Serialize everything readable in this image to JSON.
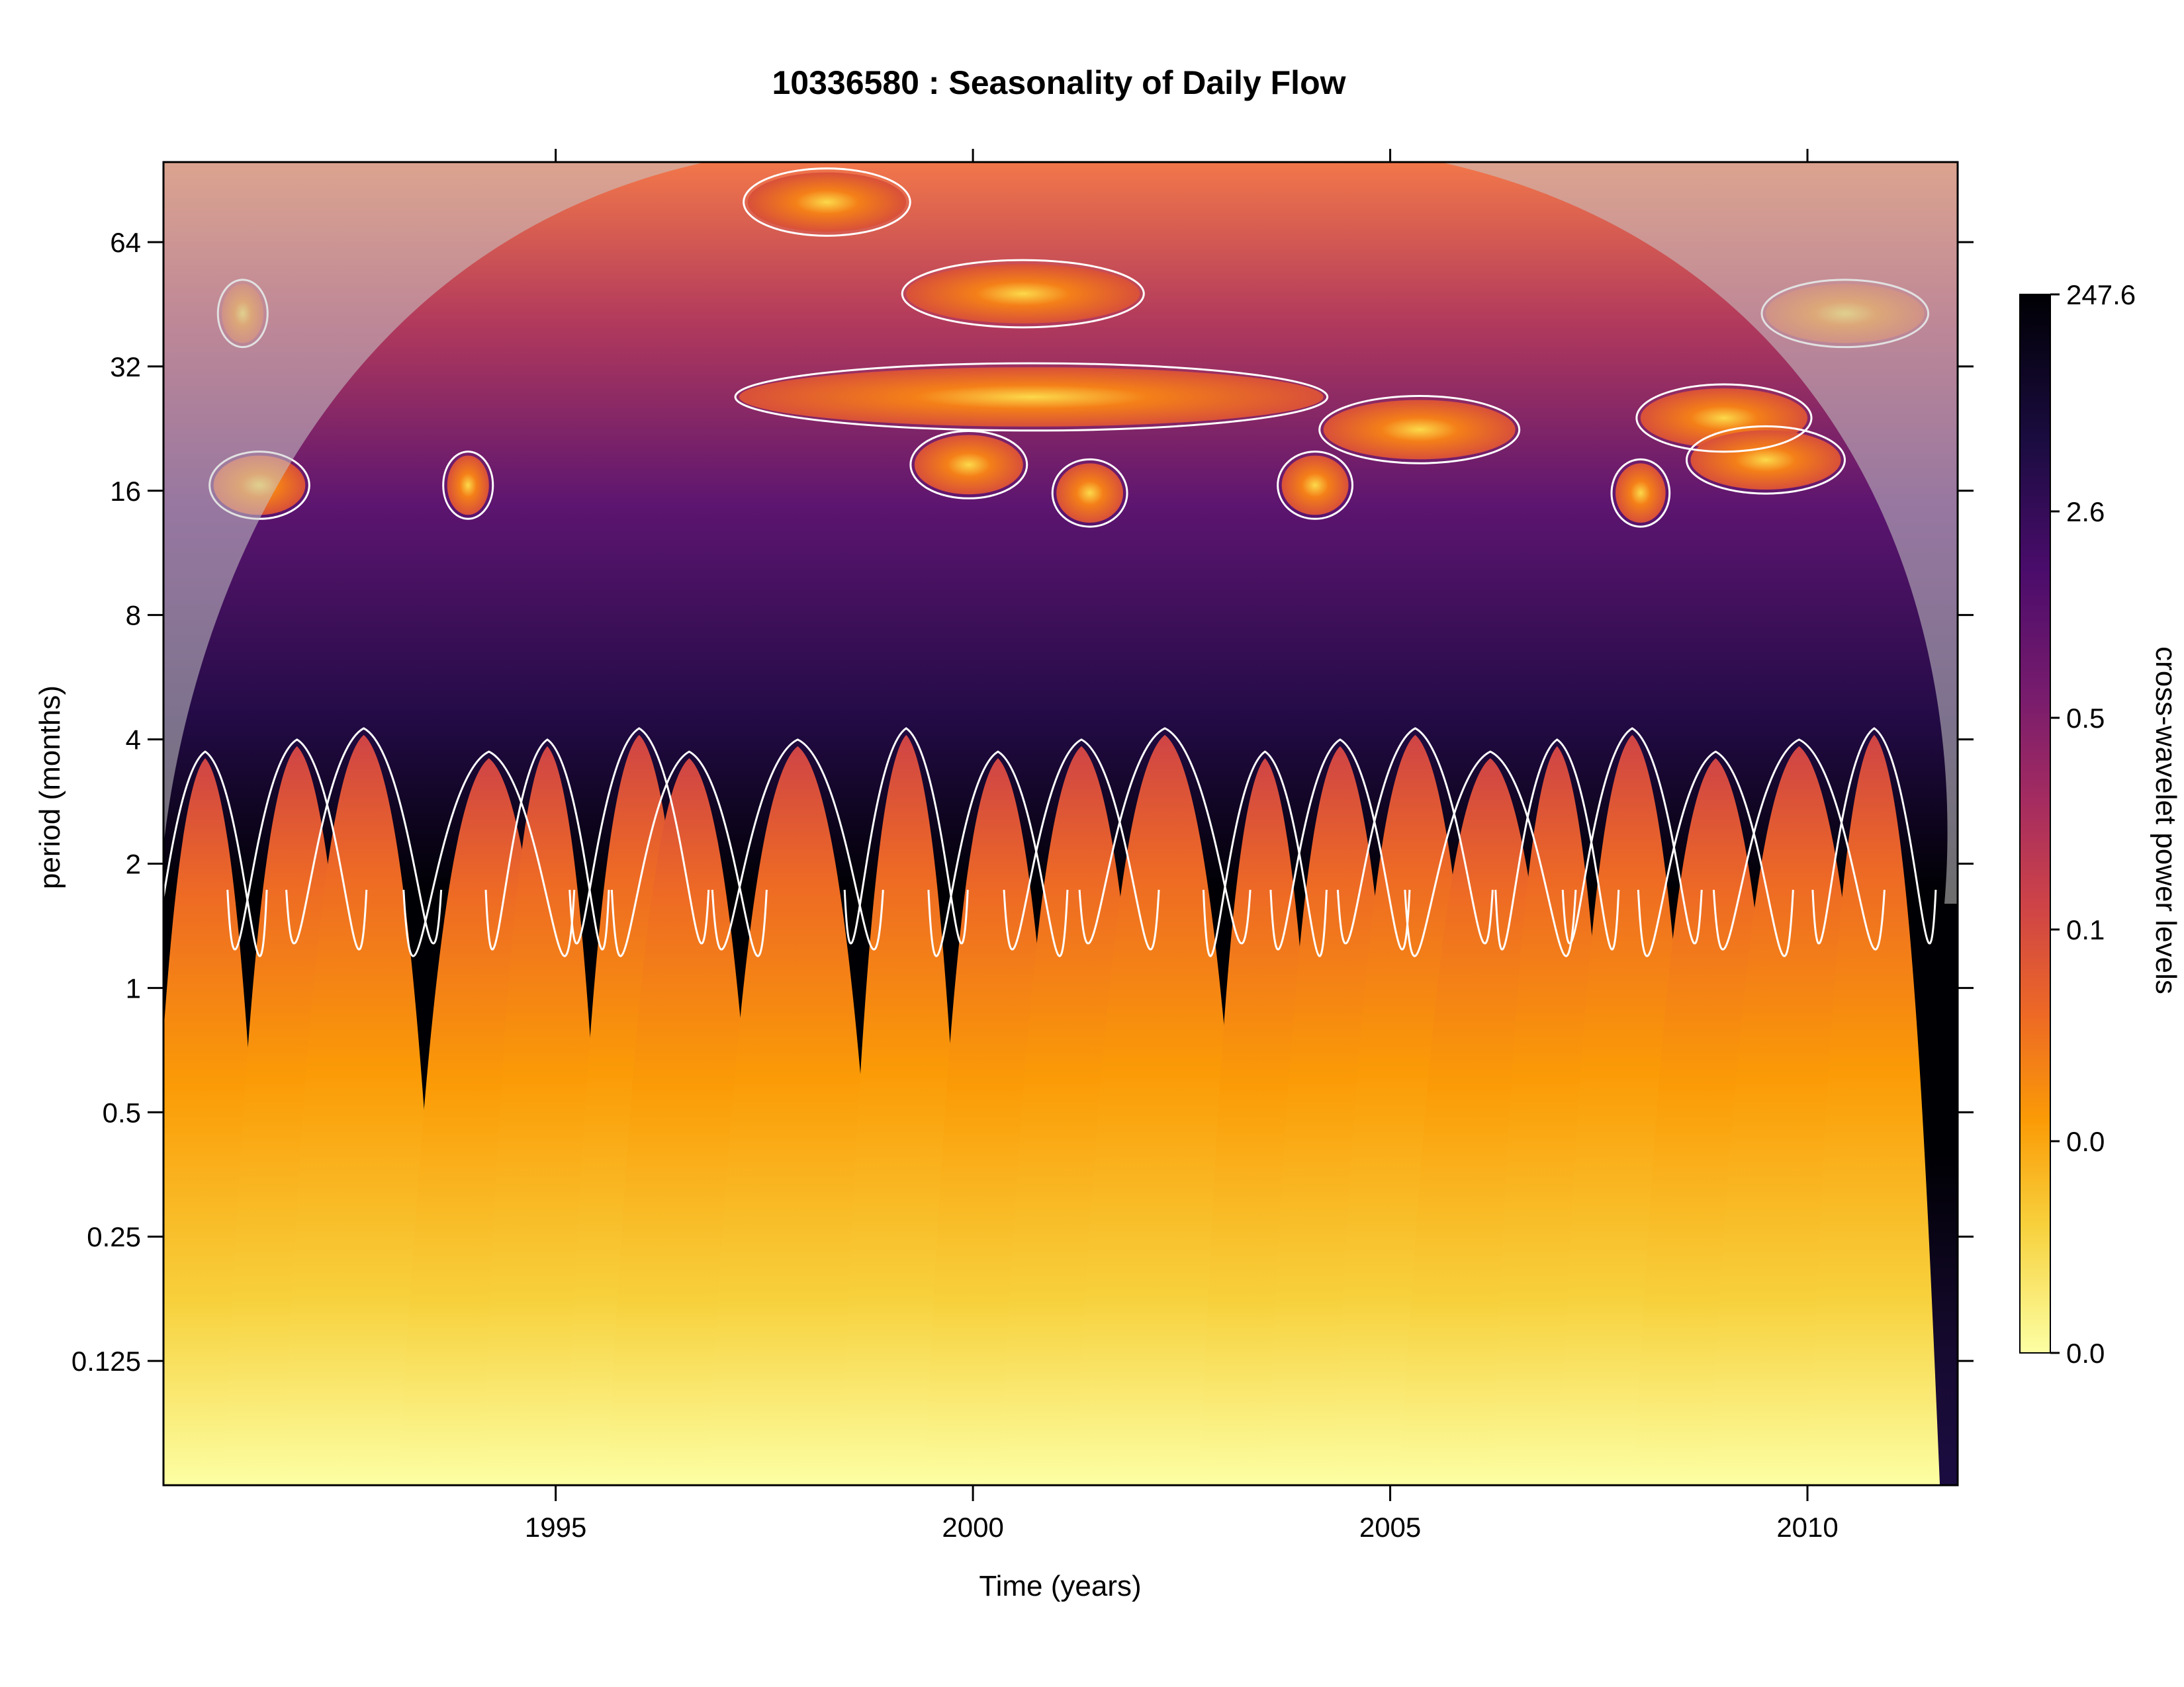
{
  "chart_data": {
    "type": "heatmap",
    "title": "10336580 : Seasonality of Daily Flow",
    "xlabel": "Time (years)",
    "ylabel": "period (months)",
    "x_range": [
      1990.3,
      2011.8
    ],
    "y_range_months": [
      0.0625,
      100
    ],
    "y_scale": "log2",
    "x_ticks": [
      1995,
      2000,
      2005,
      2010
    ],
    "x_tick_labels": [
      "1995",
      "2000",
      "2005",
      "2010"
    ],
    "y_ticks": [
      0.125,
      0.25,
      0.5,
      1,
      2,
      4,
      8,
      16,
      32,
      64
    ],
    "y_tick_labels": [
      "0.125",
      "0.25",
      "0.5",
      "1",
      "2",
      "4",
      "8",
      "16",
      "32",
      "64"
    ],
    "colorbar": {
      "label": "cross-wavelet power levels",
      "tick_labels": [
        "247.6",
        "2.6",
        "0.5",
        "0.1",
        "0.0",
        "0.0"
      ],
      "colors": [
        "#000004",
        "#1b0c41",
        "#4a0c6b",
        "#781c6d",
        "#a52c60",
        "#cf4446",
        "#ed6925",
        "#fb9b06",
        "#f7d13d",
        "#fcffa4"
      ]
    },
    "seasonal_peaks_year": [
      1990.8,
      1991.9,
      1992.7,
      1994.2,
      1994.9,
      1996.0,
      1996.6,
      1997.9,
      1999.2,
      2000.3,
      2001.3,
      2002.3,
      2003.5,
      2004.4,
      2005.3,
      2006.2,
      2007.0,
      2007.9,
      2008.9,
      2009.9,
      2010.8
    ],
    "grid": false,
    "legend": "right colorbar",
    "colors": {
      "coi_shade": "#c8c8c8",
      "contour": "#ffffff"
    }
  }
}
